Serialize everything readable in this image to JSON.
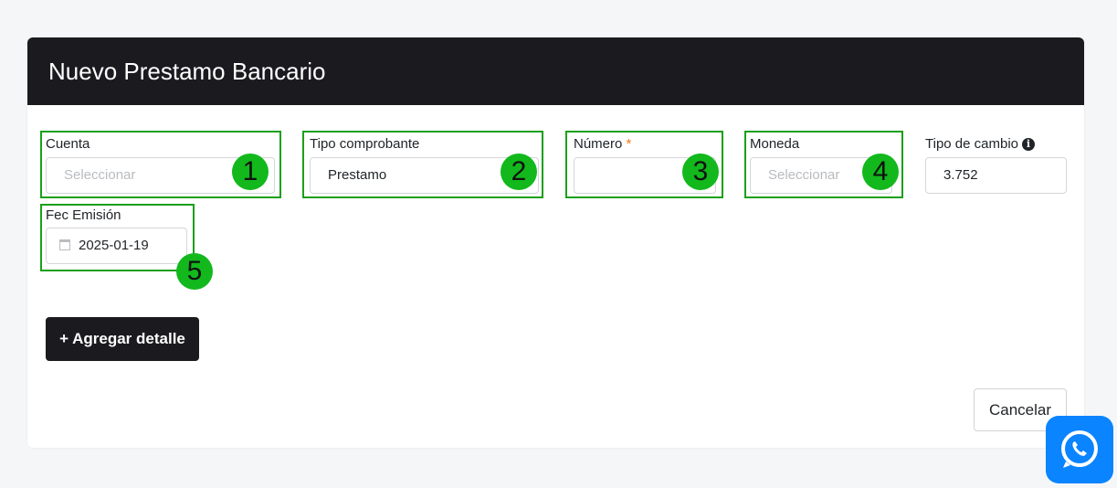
{
  "title": "Nuevo Prestamo Bancario",
  "fields": {
    "cuenta": {
      "label": "Cuenta",
      "placeholder": "Seleccionar",
      "badge": "1"
    },
    "tipo_comprobante": {
      "label": "Tipo comprobante",
      "value": "Prestamo",
      "badge": "2"
    },
    "numero": {
      "label": "Número",
      "required": "*",
      "value": "",
      "badge": "3"
    },
    "moneda": {
      "label": "Moneda",
      "placeholder": "Seleccionar",
      "badge": "4"
    },
    "tipo_cambio": {
      "label": "Tipo de cambio",
      "info": "i",
      "value": "3.752"
    },
    "fec_emision": {
      "label": "Fec Emisión",
      "value": "2025-01-19",
      "badge": "5"
    }
  },
  "buttons": {
    "add_detail": "+ Agregar detalle",
    "cancel": "Cancelar"
  },
  "colors": {
    "header": "#1b1b1f",
    "badge": "#12b81c",
    "highlight": "#1aa01a",
    "whatsapp": "#0a84ff"
  }
}
